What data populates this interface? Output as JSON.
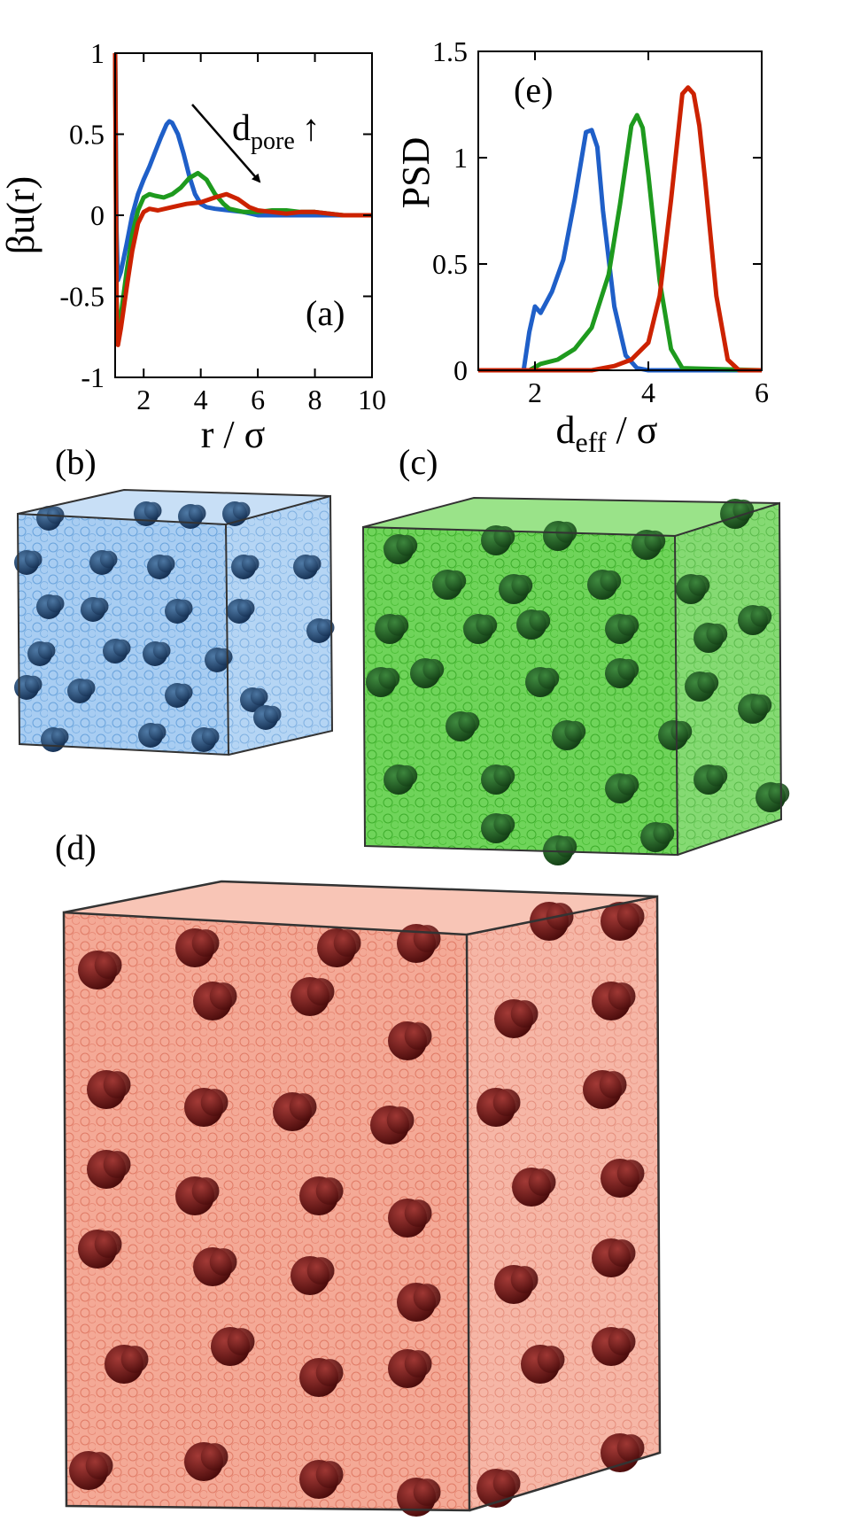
{
  "colors": {
    "blue": "#1f5fc8",
    "green": "#1e9a1e",
    "red": "#cc2200"
  },
  "panels": {
    "a": {
      "label": "(a)"
    },
    "b": {
      "label": "(b)"
    },
    "c": {
      "label": "(c)"
    },
    "d": {
      "label": "(d)"
    },
    "e": {
      "label": "(e)"
    }
  },
  "annotation": {
    "arrow_text": "d",
    "subscript": "pore",
    "up_arrow": "↑"
  },
  "chart_data": [
    {
      "type": "line",
      "panel": "(a)",
      "xlabel": "r / σ",
      "ylabel": "βu(r)",
      "xlim": [
        1,
        10
      ],
      "ylim": [
        -1,
        1
      ],
      "xticks": [
        "2",
        "4",
        "6",
        "8",
        "10"
      ],
      "yticks": [
        "-1",
        "-0.5",
        "0",
        "0.5",
        "1"
      ],
      "series": [
        {
          "color": "blue",
          "x": [
            1.0,
            1.05,
            1.1,
            1.2,
            1.4,
            1.6,
            1.8,
            2.0,
            2.2,
            2.4,
            2.6,
            2.8,
            2.9,
            3.0,
            3.2,
            3.4,
            3.6,
            3.8,
            4.0,
            4.2,
            4.5,
            5.0,
            5.5,
            6.0,
            7.0,
            8.0,
            9.0,
            10.0
          ],
          "y": [
            1.0,
            -0.1,
            -0.4,
            -0.35,
            -0.18,
            0.0,
            0.13,
            0.22,
            0.3,
            0.39,
            0.48,
            0.56,
            0.58,
            0.57,
            0.5,
            0.38,
            0.24,
            0.13,
            0.07,
            0.05,
            0.04,
            0.03,
            0.02,
            0.0,
            0.0,
            0.0,
            0.0,
            0.0
          ]
        },
        {
          "color": "green",
          "x": [
            1.0,
            1.05,
            1.1,
            1.2,
            1.4,
            1.6,
            1.8,
            2.0,
            2.2,
            2.4,
            2.7,
            3.0,
            3.3,
            3.6,
            3.9,
            4.2,
            4.5,
            4.8,
            5.0,
            5.5,
            6.0,
            6.5,
            7.0,
            7.5,
            8.0,
            8.5,
            9.0,
            10.0
          ],
          "y": [
            1.0,
            -0.5,
            -0.75,
            -0.62,
            -0.35,
            -0.12,
            0.03,
            0.11,
            0.13,
            0.12,
            0.11,
            0.13,
            0.17,
            0.23,
            0.26,
            0.22,
            0.13,
            0.07,
            0.04,
            0.02,
            0.02,
            0.03,
            0.03,
            0.02,
            0.02,
            0.01,
            0.0,
            0.0
          ]
        },
        {
          "color": "red",
          "x": [
            1.0,
            1.05,
            1.1,
            1.2,
            1.4,
            1.6,
            1.8,
            2.0,
            2.2,
            2.5,
            3.0,
            3.5,
            4.0,
            4.5,
            4.9,
            5.3,
            5.7,
            6.0,
            6.5,
            7.0,
            7.5,
            8.0,
            8.5,
            9.0,
            10.0
          ],
          "y": [
            1.0,
            -0.6,
            -0.8,
            -0.7,
            -0.45,
            -0.22,
            -0.05,
            0.02,
            0.04,
            0.03,
            0.05,
            0.07,
            0.08,
            0.11,
            0.13,
            0.1,
            0.05,
            0.03,
            0.02,
            0.01,
            0.02,
            0.02,
            0.01,
            0.0,
            0.0
          ]
        }
      ]
    },
    {
      "type": "line",
      "panel": "(e)",
      "xlabel": "d",
      "xlabel_sub": "eff",
      "xlabel_tail": " / σ",
      "ylabel": "PSD",
      "xlim": [
        1,
        6
      ],
      "ylim": [
        0,
        1.5
      ],
      "xticks": [
        "2",
        "4",
        "6"
      ],
      "yticks": [
        "0",
        "0.5",
        "1",
        "1.5"
      ],
      "series": [
        {
          "color": "blue",
          "x": [
            1.0,
            1.8,
            1.9,
            2.0,
            2.1,
            2.3,
            2.5,
            2.7,
            2.9,
            3.0,
            3.1,
            3.2,
            3.4,
            3.6,
            3.8,
            4.0,
            6.0
          ],
          "y": [
            0.0,
            0.0,
            0.18,
            0.3,
            0.27,
            0.37,
            0.52,
            0.8,
            1.12,
            1.13,
            1.05,
            0.75,
            0.3,
            0.07,
            0.01,
            0.0,
            0.0
          ]
        },
        {
          "color": "green",
          "x": [
            1.0,
            1.9,
            2.1,
            2.4,
            2.7,
            3.0,
            3.3,
            3.5,
            3.7,
            3.8,
            3.9,
            4.0,
            4.2,
            4.4,
            4.6,
            6.0
          ],
          "y": [
            0.0,
            0.0,
            0.03,
            0.05,
            0.1,
            0.2,
            0.45,
            0.78,
            1.15,
            1.2,
            1.14,
            0.92,
            0.42,
            0.1,
            0.01,
            0.0
          ]
        },
        {
          "color": "red",
          "x": [
            1.0,
            3.0,
            3.4,
            3.7,
            4.0,
            4.2,
            4.4,
            4.6,
            4.7,
            4.8,
            4.9,
            5.0,
            5.2,
            5.4,
            5.6,
            6.0
          ],
          "y": [
            0.0,
            0.0,
            0.02,
            0.05,
            0.13,
            0.35,
            0.8,
            1.3,
            1.33,
            1.3,
            1.15,
            0.9,
            0.35,
            0.05,
            0.0,
            0.0
          ]
        }
      ]
    }
  ]
}
